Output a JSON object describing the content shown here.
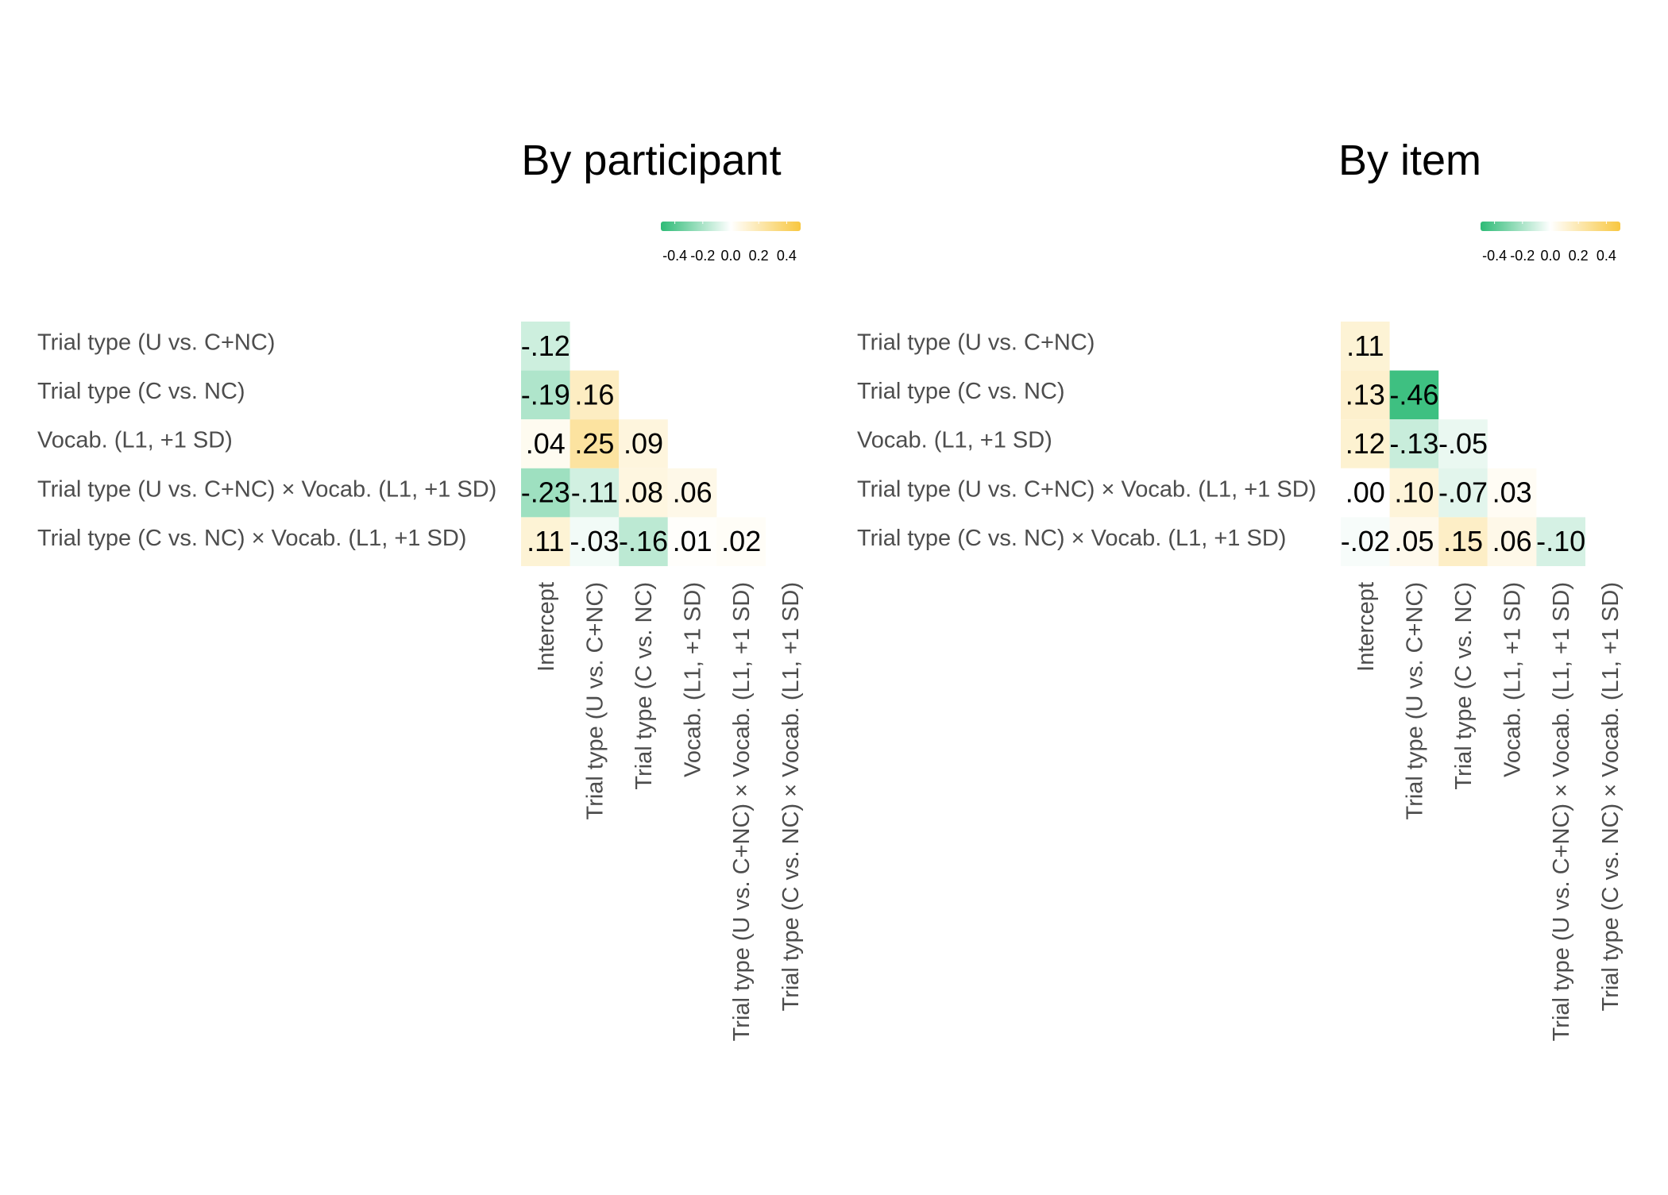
{
  "colors": {
    "negative": "#2dbb76",
    "neutral": "#ffffff",
    "positive": "#f8c740",
    "text": "#000000",
    "axis_text": "#4d4d4d"
  },
  "legend": {
    "ticks": [
      "-0.4",
      "-0.2",
      "0.0",
      "0.2",
      "0.4"
    ],
    "limits": [
      -0.5,
      0.5
    ]
  },
  "chart_data": [
    {
      "type": "heatmap",
      "title": "By participant",
      "row_labels": [
        "Trial type (U vs. C+NC)",
        "Trial type (C vs. NC)",
        "Vocab. (L1, +1 SD)",
        "Trial type (U vs. C+NC) × Vocab. (L1, +1 SD)",
        "Trial type (C vs. NC) × Vocab. (L1, +1 SD)"
      ],
      "col_labels": [
        "Intercept",
        "Trial type (U vs. C+NC)",
        "Trial type (C vs. NC)",
        "Vocab. (L1, +1 SD)",
        "Trial type (U vs. C+NC) × Vocab. (L1, +1 SD)",
        "Trial type (C vs. NC) × Vocab. (L1, +1 SD)"
      ],
      "values": [
        [
          -0.12
        ],
        [
          -0.19,
          0.16
        ],
        [
          0.04,
          0.25,
          0.09
        ],
        [
          -0.23,
          -0.11,
          0.08,
          0.06
        ],
        [
          0.11,
          -0.03,
          -0.16,
          0.01,
          0.02
        ]
      ],
      "labels": [
        [
          "-.12"
        ],
        [
          "-.19",
          ".16"
        ],
        [
          ".04",
          ".25",
          ".09"
        ],
        [
          "-.23",
          "-.11",
          ".08",
          ".06"
        ],
        [
          ".11",
          "-.03",
          "-.16",
          ".01",
          ".02"
        ]
      ]
    },
    {
      "type": "heatmap",
      "title": "By item",
      "row_labels": [
        "Trial type (U vs. C+NC)",
        "Trial type (C vs. NC)",
        "Vocab. (L1, +1 SD)",
        "Trial type (U vs. C+NC) × Vocab. (L1, +1 SD)",
        "Trial type (C vs. NC) × Vocab. (L1, +1 SD)"
      ],
      "col_labels": [
        "Intercept",
        "Trial type (U vs. C+NC)",
        "Trial type (C vs. NC)",
        "Vocab. (L1, +1 SD)",
        "Trial type (U vs. C+NC) × Vocab. (L1, +1 SD)",
        "Trial type (C vs. NC) × Vocab. (L1, +1 SD)"
      ],
      "values": [
        [
          0.11
        ],
        [
          0.13,
          -0.46
        ],
        [
          0.12,
          -0.13,
          -0.05
        ],
        [
          0.0,
          0.1,
          -0.07,
          0.03
        ],
        [
          -0.02,
          0.05,
          0.15,
          0.06,
          -0.1
        ]
      ],
      "labels": [
        [
          ".11"
        ],
        [
          ".13",
          "-.46"
        ],
        [
          ".12",
          "-.13",
          "-.05"
        ],
        [
          ".00",
          ".10",
          "-.07",
          ".03"
        ],
        [
          "-.02",
          ".05",
          ".15",
          ".06",
          "-.10"
        ]
      ]
    }
  ]
}
